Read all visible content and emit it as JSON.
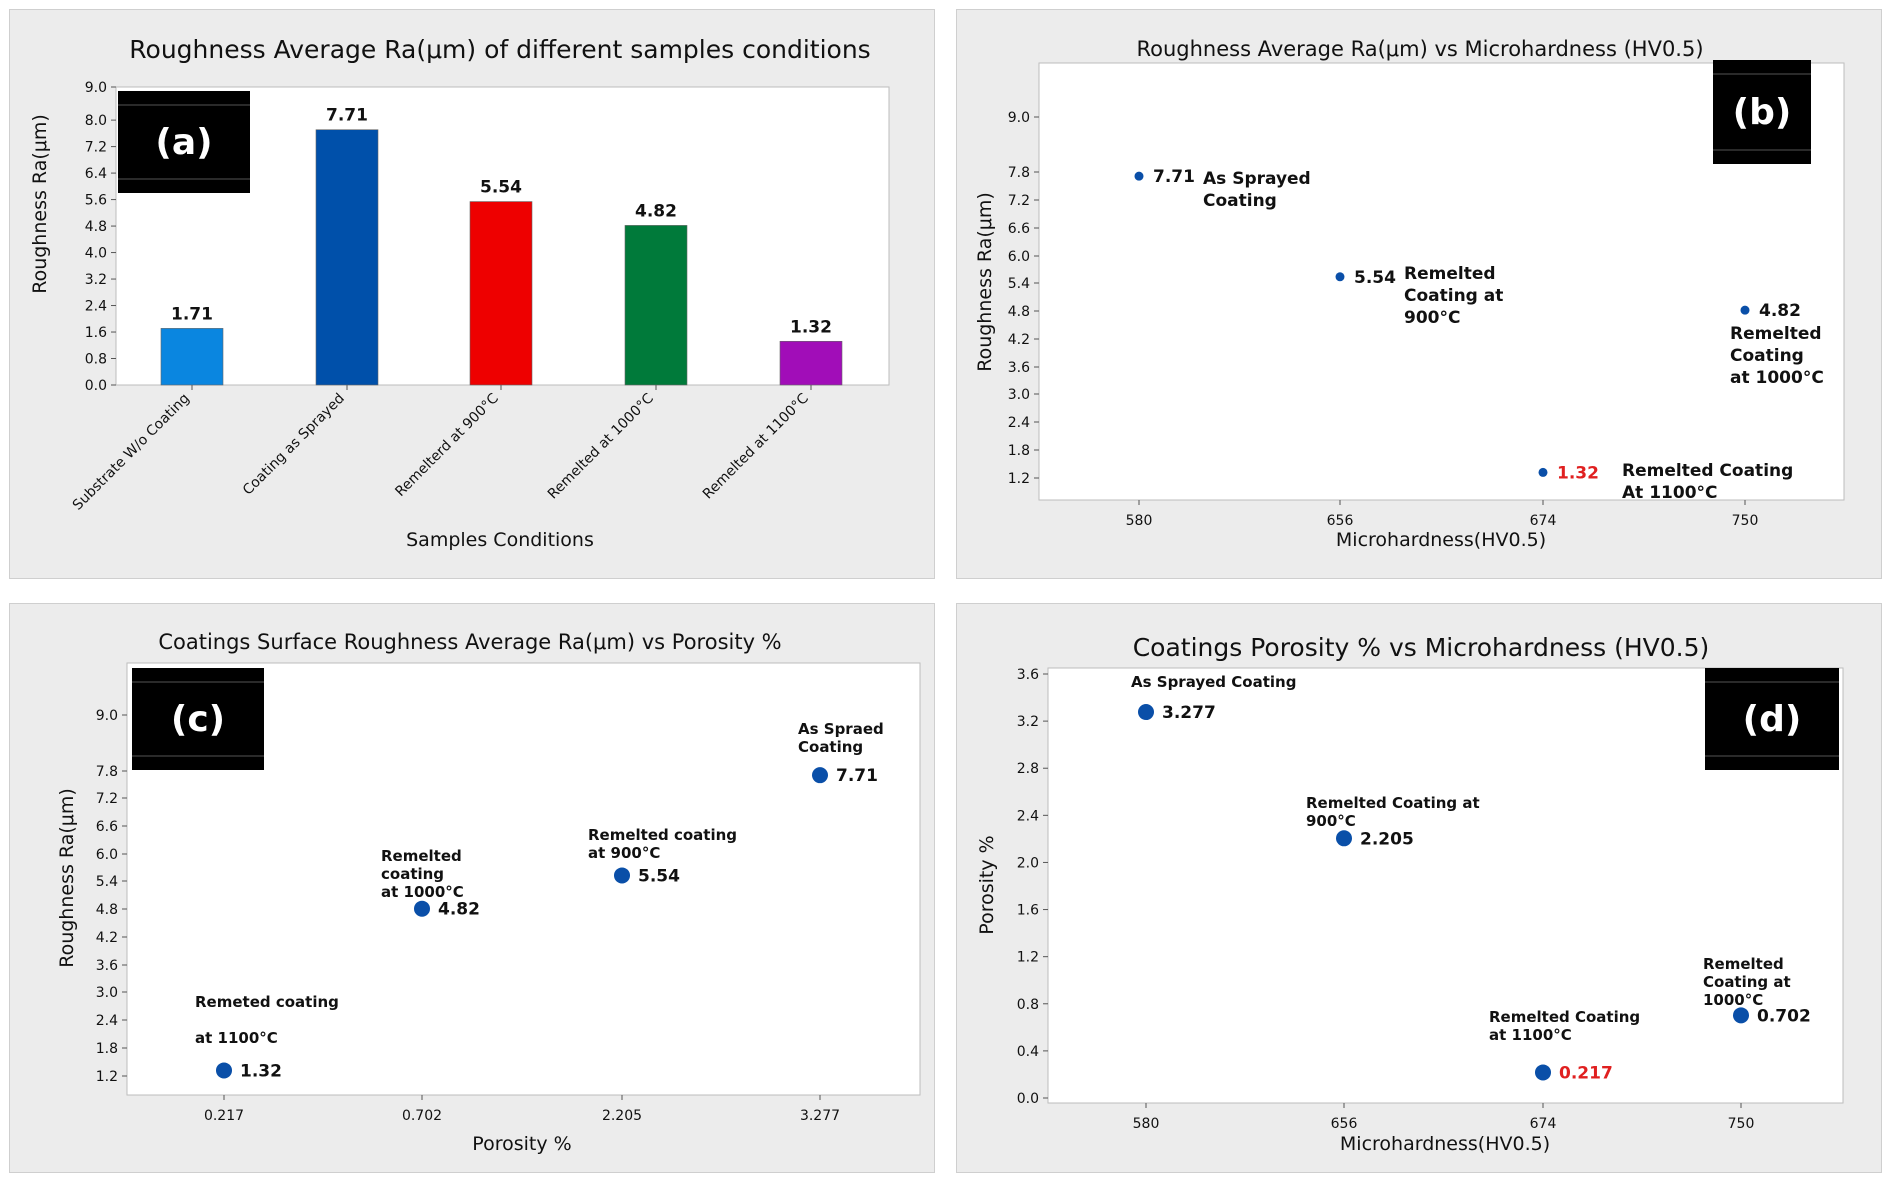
{
  "chart_data": [
    {
      "id": "a",
      "type": "bar",
      "badge": "(a)",
      "title": "Roughness Average Ra(μm) of different samples conditions",
      "xlabel": "Samples Conditions",
      "ylabel": "Roughness Ra(μm)",
      "ylim": [
        0,
        9
      ],
      "yticks": [
        "0.0",
        "0.8",
        "1.6",
        "2.4",
        "3.2",
        "4.0",
        "4.8",
        "5.6",
        "6.4",
        "7.2",
        "8.0",
        "9.0"
      ],
      "categories": [
        "Substrate W/o Coating",
        "Coating as Sprayed",
        "Remelterd at 900°C",
        "Remelted  at 1000°C",
        "Remelted    at 1100°C"
      ],
      "values": [
        1.71,
        7.71,
        5.54,
        4.82,
        1.32
      ],
      "value_labels": [
        "1.71",
        "7.71",
        "5.54",
        "4.82",
        "1.32"
      ],
      "colors": [
        "#0a86e0",
        "#0050aa",
        "#ee0000",
        "#007a3a",
        "#a10db8"
      ]
    },
    {
      "id": "b",
      "type": "scatter",
      "badge": "(b)",
      "title": "Roughness Average Ra(μm) vs Microhardness (HV0.5)",
      "xlabel": "Microhardness(HV0.5)",
      "ylabel": "Roughness Ra(μm)",
      "xcategories": [
        "580",
        "656",
        "674",
        "750"
      ],
      "ylim": [
        0.8,
        10.0
      ],
      "yticks": [
        "1.2",
        "1.8",
        "2.4",
        "3.0",
        "3.6",
        "4.2",
        "4.8",
        "5.4",
        "6.0",
        "6.6",
        "7.2",
        "7.8",
        "9.0"
      ],
      "points": [
        {
          "x": "580",
          "y": 7.71,
          "label": "7.71",
          "label_color": "#111111",
          "annotation": [
            "As Sprayed",
            "Coating"
          ]
        },
        {
          "x": "656",
          "y": 5.54,
          "label": "5.54",
          "label_color": "#111111",
          "annotation": [
            "Remelted",
            "Coating at",
            "900°C"
          ]
        },
        {
          "x": "674",
          "y": 1.32,
          "label": "1.32",
          "label_color": "#e02020",
          "annotation": [
            "Remelted Coating",
            "At 1100°C"
          ]
        },
        {
          "x": "750",
          "y": 4.82,
          "label": "4.82",
          "label_color": "#111111",
          "annotation": [
            "Remelted",
            "Coating",
            "at 1000°C"
          ]
        }
      ],
      "marker_color": "#0a4fa8"
    },
    {
      "id": "c",
      "type": "scatter",
      "badge": "(c)",
      "title": "Coatings Surface Roughness Average Ra(μm) vs Porosity %",
      "xlabel": "Porosity %",
      "ylabel": "Roughness  Ra(μm)",
      "xcategories": [
        "0.217",
        "0.702",
        "2.205",
        "3.277"
      ],
      "ylim": [
        0.8,
        10.0
      ],
      "yticks": [
        "1.2",
        "1.8",
        "2.4",
        "3.0",
        "3.6",
        "4.2",
        "4.8",
        "5.4",
        "6.0",
        "6.6",
        "7.2",
        "7.8",
        "9.0"
      ],
      "points": [
        {
          "x": "0.217",
          "y": 1.32,
          "label": "1.32",
          "label_color": "#111111",
          "annotation": [
            "Remeted coating",
            "",
            "at 1100°C"
          ]
        },
        {
          "x": "0.702",
          "y": 4.82,
          "label": "4.82",
          "label_color": "#111111",
          "annotation": [
            "Remelted",
            "coating",
            " at 1000°C"
          ]
        },
        {
          "x": "2.205",
          "y": 5.54,
          "label": "5.54",
          "label_color": "#111111",
          "annotation": [
            "Remelted coating",
            "at 900°C"
          ]
        },
        {
          "x": "3.277",
          "y": 7.71,
          "label": "7.71",
          "label_color": "#111111",
          "annotation": [
            "As Spraed",
            "Coating"
          ]
        }
      ],
      "marker_color": "#0a4fa8"
    },
    {
      "id": "d",
      "type": "scatter",
      "badge": "(d)",
      "title": "Coatings Porosity % vs Microhardness (HV0.5)",
      "xlabel": "Microhardness(HV0.5)",
      "ylabel": "Porosity %",
      "xcategories": [
        "580",
        "656",
        "674",
        "750"
      ],
      "ylim": [
        -0.07,
        3.65
      ],
      "yticks": [
        "0.0",
        "0.4",
        "0.8",
        "1.2",
        "1.6",
        "2.0",
        "2.4",
        "2.8",
        "3.2",
        "3.6"
      ],
      "points": [
        {
          "x": "580",
          "y": 3.277,
          "label": "3.277",
          "label_color": "#111111",
          "annotation": [
            "As Sprayed Coating"
          ]
        },
        {
          "x": "656",
          "y": 2.205,
          "label": "2.205",
          "label_color": "#111111",
          "annotation": [
            "Remelted Coating at",
            "900°C"
          ]
        },
        {
          "x": "674",
          "y": 0.217,
          "label": "0.217",
          "label_color": "#e02020",
          "annotation": [
            "Remelted Coating",
            "at 1100°C"
          ]
        },
        {
          "x": "750",
          "y": 0.702,
          "label": "0.702",
          "label_color": "#111111",
          "annotation": [
            "Remelted",
            "Coating at",
            "1000°C"
          ]
        }
      ],
      "marker_color": "#0a4fa8"
    }
  ]
}
